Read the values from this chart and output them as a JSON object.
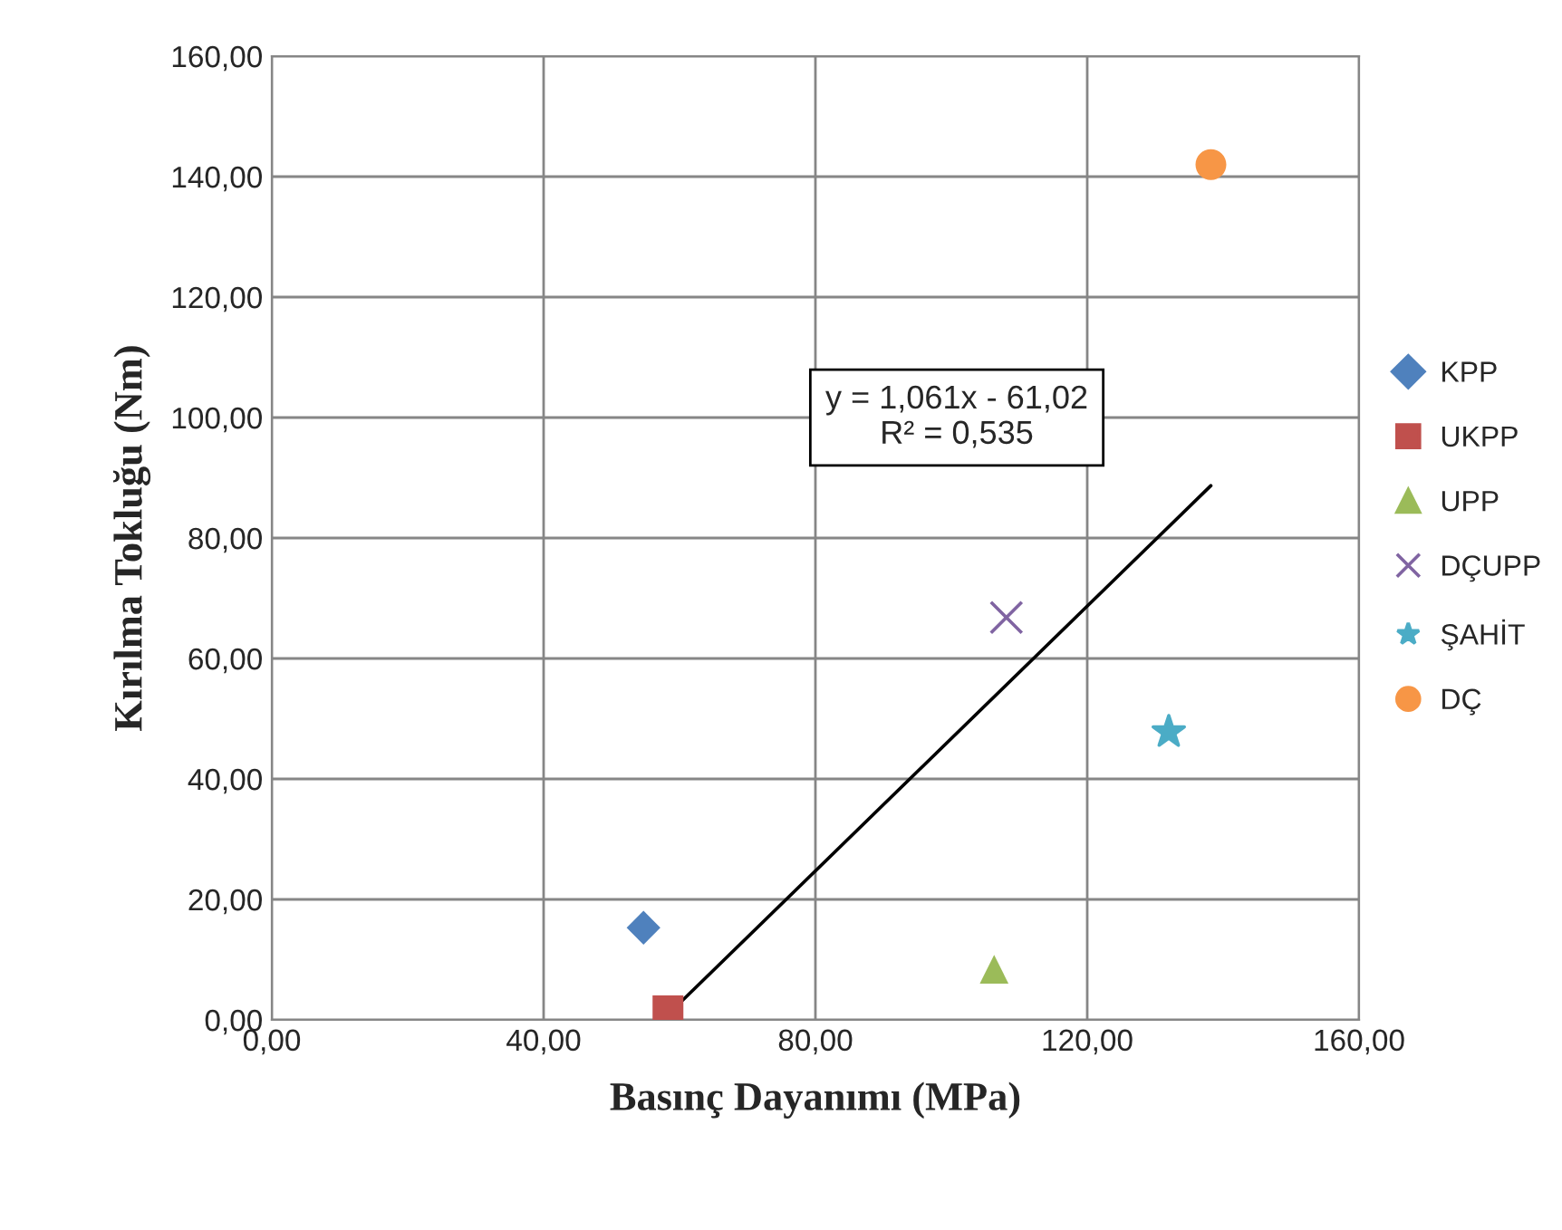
{
  "chart_data": {
    "type": "scatter",
    "xlabel": "Basınç Dayanımı (MPa)",
    "ylabel": "Kırılma Tokluğu (Nm)",
    "xlim": [
      0,
      160
    ],
    "ylim": [
      0,
      160
    ],
    "xticks": [
      {
        "value": 0,
        "label": "0,00"
      },
      {
        "value": 40,
        "label": "40,00"
      },
      {
        "value": 80,
        "label": "80,00"
      },
      {
        "value": 120,
        "label": "120,00"
      },
      {
        "value": 160,
        "label": "160,00"
      }
    ],
    "yticks": [
      {
        "value": 0,
        "label": "0,00"
      },
      {
        "value": 20,
        "label": "20,00"
      },
      {
        "value": 40,
        "label": "40,00"
      },
      {
        "value": 60,
        "label": "60,00"
      },
      {
        "value": 80,
        "label": "80,00"
      },
      {
        "value": 100,
        "label": "100,00"
      },
      {
        "value": 120,
        "label": "120,00"
      },
      {
        "value": 140,
        "label": "140,00"
      },
      {
        "value": 160,
        "label": "160,00"
      }
    ],
    "grid": true,
    "legend": "right",
    "series": [
      {
        "name": "KPP",
        "color": "#4f81bd",
        "marker": "diamond",
        "x": [
          54.7
        ],
        "values": [
          15.3
        ]
      },
      {
        "name": "UKPP",
        "color": "#c0504d",
        "marker": "square",
        "x": [
          58.3
        ],
        "values": [
          1.5
        ]
      },
      {
        "name": "UPP",
        "color": "#9bbb59",
        "marker": "triangle",
        "x": [
          106.3
        ],
        "values": [
          8.4
        ]
      },
      {
        "name": "DÇUPP",
        "color": "#8064a2",
        "marker": "cross",
        "x": [
          108.1
        ],
        "values": [
          66.8
        ]
      },
      {
        "name": "ŞAHİT",
        "color": "#4bacc6",
        "marker": "star",
        "x": [
          132.0
        ],
        "values": [
          47.8
        ]
      },
      {
        "name": "DÇ",
        "color": "#f79646",
        "marker": "circle",
        "x": [
          138.2
        ],
        "values": [
          142.0
        ]
      },
      {
        "type": "line",
        "color": "#000000",
        "marker": "none",
        "x": [
          57.5,
          138.2
        ],
        "values": [
          0,
          88.7
        ]
      }
    ],
    "annotations": [
      "y = 1,061x - 61,02\nR² = 0,535"
    ]
  }
}
